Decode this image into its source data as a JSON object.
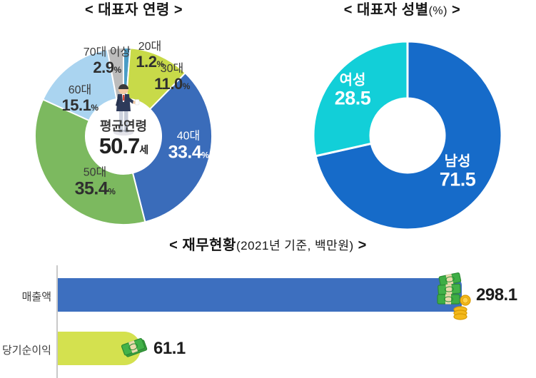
{
  "chart_data": [
    {
      "type": "pie",
      "donut": true,
      "title": "< 대표자 연령 >",
      "unit": "%",
      "legend_position": "labels-on-slices",
      "center": {
        "label": "평균연령",
        "value": 50.7,
        "value_display": "50.7",
        "unit": "세"
      },
      "slices": [
        {
          "label": "20대",
          "value": 1.2,
          "display": "1.2",
          "color": "#4a9dc6"
        },
        {
          "label": "30대",
          "value": 11.0,
          "display": "11.0",
          "color": "#c8da49"
        },
        {
          "label": "40대",
          "value": 33.4,
          "display": "33.4",
          "color": "#3a6cba"
        },
        {
          "label": "50대",
          "value": 35.4,
          "display": "35.4",
          "color": "#7cb95f"
        },
        {
          "label": "60대",
          "value": 15.1,
          "display": "15.1",
          "color": "#aad4f0"
        },
        {
          "label": "70대 이상",
          "value": 2.9,
          "display": "2.9",
          "color": "#bcbcbc"
        }
      ]
    },
    {
      "type": "pie",
      "donut": true,
      "title": "< 대표자 성별(%) >",
      "title_parts": {
        "main": "< 대표자 성별",
        "paren": "(%)",
        "suffix": " >"
      },
      "legend_position": "labels-on-slices",
      "slices": [
        {
          "label": "남성",
          "value": 71.5,
          "display": "71.5",
          "color": "#166bc9"
        },
        {
          "label": "여성",
          "value": 28.5,
          "display": "28.5",
          "color": "#12cfd8"
        }
      ]
    },
    {
      "type": "bar",
      "orientation": "horizontal",
      "title": "< 재무현황(2021년 기준, 백만원) >",
      "title_parts": {
        "main": "< 재무현황",
        "paren": "(2021년 기준, 백만원)",
        "suffix": " >"
      },
      "categories": [
        "매출액",
        "당기순이익"
      ],
      "values": [
        298.1,
        61.1
      ],
      "displays": [
        "298.1",
        "61.1"
      ],
      "colors": [
        "#3d6fbf",
        "#d4e14f"
      ],
      "xlim": [
        0,
        320
      ],
      "grid": false,
      "icons": [
        "money-stack-coins-icon",
        "money-bundle-icon"
      ]
    }
  ]
}
